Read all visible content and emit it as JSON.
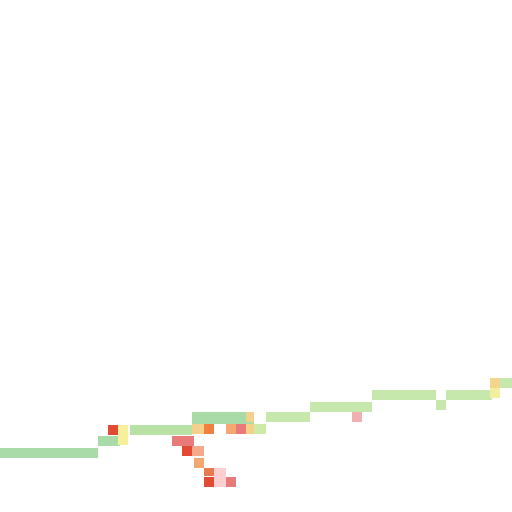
{
  "map": {
    "background_color": "#ffffff",
    "route_segments": [
      {
        "id": 1,
        "color": "#a8dba8"
      },
      {
        "id": 2,
        "color": "#a8dba8"
      },
      {
        "id": 3,
        "color": "#b7e1a5"
      },
      {
        "id": 4,
        "color": "#a8dba8"
      },
      {
        "id": 5,
        "color": "#cdeaa8"
      },
      {
        "id": 6,
        "color": "#c6e8ac"
      },
      {
        "id": 7,
        "color": "#c6e8ac"
      },
      {
        "id": 8,
        "color": "#c6e8ac"
      },
      {
        "id": 9,
        "color": "#c6e8ac"
      },
      {
        "id": 10,
        "color": "#c6e8ac"
      },
      {
        "id": 11,
        "color": "#c6e8ac"
      },
      {
        "id": 12,
        "color": "#c6e8ac"
      }
    ],
    "markers": [
      {
        "id": 1,
        "color": "#e34a33"
      },
      {
        "id": 2,
        "color": "#f7f09a"
      },
      {
        "id": 3,
        "color": "#f7f09a"
      },
      {
        "id": 4,
        "color": "#f5d08c"
      },
      {
        "id": 5,
        "color": "#f08040"
      },
      {
        "id": 6,
        "color": "#f2a870"
      },
      {
        "id": 7,
        "color": "#e87a7a"
      },
      {
        "id": 8,
        "color": "#f5d08c"
      },
      {
        "id": 9,
        "color": "#f5d08c"
      },
      {
        "id": 10,
        "color": "#eeb0b0"
      },
      {
        "id": 11,
        "color": "#f5d58c"
      },
      {
        "id": 12,
        "color": "#f4efa0"
      },
      {
        "id": 13,
        "color": "#e87a7a"
      },
      {
        "id": 14,
        "color": "#e87a7a"
      },
      {
        "id": 15,
        "color": "#e34a33"
      },
      {
        "id": 16,
        "color": "#f5a98a"
      },
      {
        "id": 17,
        "color": "#f2a870"
      },
      {
        "id": 18,
        "color": "#e87a50"
      },
      {
        "id": 19,
        "color": "#fcd0d0"
      },
      {
        "id": 20,
        "color": "#e34a33"
      },
      {
        "id": 21,
        "color": "#fcd0d0"
      },
      {
        "id": 22,
        "color": "#e87a7a"
      }
    ]
  }
}
